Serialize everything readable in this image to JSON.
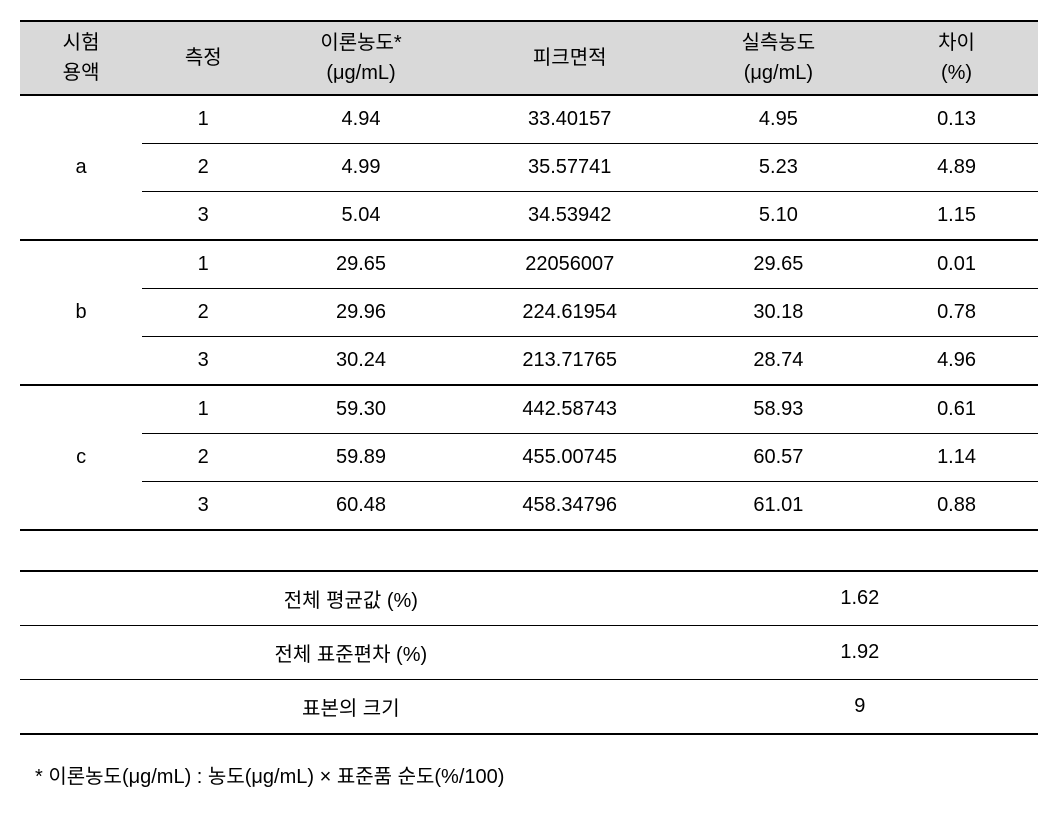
{
  "headers": {
    "col1_line1": "시험",
    "col1_line2": "용액",
    "col2": "측정",
    "col3_line1": "이론농도*",
    "col3_line2": "(μg/mL)",
    "col4": "피크면적",
    "col5_line1": "실측농도",
    "col5_line2": "(μg/mL)",
    "col6_line1": "차이",
    "col6_line2": "(%)"
  },
  "groups": [
    {
      "label": "a",
      "rows": [
        {
          "measure": "1",
          "theory": "4.94",
          "peak": "33.40157",
          "actual": "4.95",
          "diff": "0.13"
        },
        {
          "measure": "2",
          "theory": "4.99",
          "peak": "35.57741",
          "actual": "5.23",
          "diff": "4.89"
        },
        {
          "measure": "3",
          "theory": "5.04",
          "peak": "34.53942",
          "actual": "5.10",
          "diff": "1.15"
        }
      ]
    },
    {
      "label": "b",
      "rows": [
        {
          "measure": "1",
          "theory": "29.65",
          "peak": "22056007",
          "actual": "29.65",
          "diff": "0.01"
        },
        {
          "measure": "2",
          "theory": "29.96",
          "peak": "224.61954",
          "actual": "30.18",
          "diff": "0.78"
        },
        {
          "measure": "3",
          "theory": "30.24",
          "peak": "213.71765",
          "actual": "28.74",
          "diff": "4.96"
        }
      ]
    },
    {
      "label": "c",
      "rows": [
        {
          "measure": "1",
          "theory": "59.30",
          "peak": "442.58743",
          "actual": "58.93",
          "diff": "0.61"
        },
        {
          "measure": "2",
          "theory": "59.89",
          "peak": "455.00745",
          "actual": "60.57",
          "diff": "1.14"
        },
        {
          "measure": "3",
          "theory": "60.48",
          "peak": "458.34796",
          "actual": "61.01",
          "diff": "0.88"
        }
      ]
    }
  ],
  "summary": [
    {
      "label": "전체 평균값 (%)",
      "value": "1.62"
    },
    {
      "label": "전체 표준편차 (%)",
      "value": "1.92"
    },
    {
      "label": "표본의 크기",
      "value": "9"
    }
  ],
  "footnote": "* 이론농도(μg/mL) : 농도(μg/mL) × 표준품 순도(%/100)",
  "styles": {
    "header_bg": "#d9d9d9",
    "border_thick": "2px solid #000",
    "border_thin": "1px solid #000",
    "font_size": 20,
    "column_widths": [
      "12%",
      "12%",
      "19%",
      "22%",
      "19%",
      "16%"
    ]
  }
}
